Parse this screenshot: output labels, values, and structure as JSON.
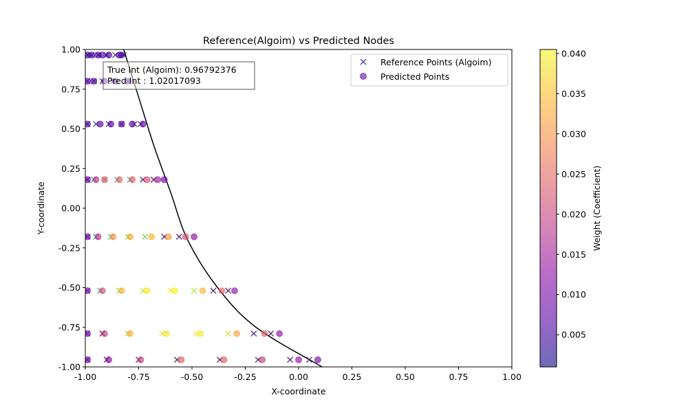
{
  "chart_data": {
    "type": "scatter",
    "title": "Reference(Algoim) vs Predicted Nodes",
    "xlabel": "X-coordinate",
    "ylabel": "Y-coordinate",
    "xlim": [
      -1.0,
      1.0
    ],
    "ylim": [
      -1.0,
      1.0
    ],
    "x_ticks": [
      "-1.00",
      "-0.75",
      "-0.50",
      "-0.25",
      "0.00",
      "0.25",
      "0.50",
      "0.75",
      "1.00"
    ],
    "y_ticks": [
      "-1.00",
      "-0.75",
      "-0.50",
      "-0.25",
      "0.00",
      "0.25",
      "0.50",
      "0.75",
      "1.00"
    ],
    "grid": false,
    "legend_position": "top-right",
    "legend": [
      {
        "label": "Reference Points (Algoim)",
        "marker": "x"
      },
      {
        "label": "Predicted Points",
        "marker": "o"
      }
    ],
    "annotation": {
      "line1": "True Int (Algoim): 0.96792376",
      "line2": "Pred Int : 1.02017093"
    },
    "colorbar": {
      "label": "Weight (Coefficient)",
      "range": [
        0.001,
        0.0405
      ],
      "ticks": [
        "0.005",
        "0.010",
        "0.015",
        "0.020",
        "0.025",
        "0.030",
        "0.035",
        "0.040"
      ],
      "colormap": "plasma"
    },
    "curve": {
      "points": [
        [
          -0.82,
          1.0
        ],
        [
          -0.75,
          0.7
        ],
        [
          -0.68,
          0.4
        ],
        [
          -0.6,
          0.1
        ],
        [
          -0.52,
          -0.2
        ],
        [
          -0.38,
          -0.5
        ],
        [
          -0.2,
          -0.75
        ],
        [
          0.11,
          -1.0
        ]
      ]
    },
    "series": [
      {
        "name": "Reference Points (Algoim)",
        "marker": "x",
        "points": [
          {
            "x": -0.99,
            "y": 0.965,
            "w": 0.006
          },
          {
            "x": -0.97,
            "y": 0.965,
            "w": 0.006
          },
          {
            "x": -0.94,
            "y": 0.965,
            "w": 0.006
          },
          {
            "x": -0.9,
            "y": 0.965,
            "w": 0.006
          },
          {
            "x": -0.86,
            "y": 0.965,
            "w": 0.006
          },
          {
            "x": -0.82,
            "y": 0.965,
            "w": 0.006
          },
          {
            "x": -0.99,
            "y": 0.8,
            "w": 0.007
          },
          {
            "x": -0.96,
            "y": 0.8,
            "w": 0.007
          },
          {
            "x": -0.92,
            "y": 0.8,
            "w": 0.007
          },
          {
            "x": -0.87,
            "y": 0.8,
            "w": 0.007
          },
          {
            "x": -0.8,
            "y": 0.8,
            "w": 0.007
          },
          {
            "x": -0.99,
            "y": 0.53,
            "w": 0.008
          },
          {
            "x": -0.95,
            "y": 0.53,
            "w": 0.008
          },
          {
            "x": -0.89,
            "y": 0.53,
            "w": 0.008
          },
          {
            "x": -0.83,
            "y": 0.53,
            "w": 0.008
          },
          {
            "x": -0.77,
            "y": 0.53,
            "w": 0.008
          },
          {
            "x": -0.74,
            "y": 0.53,
            "w": 0.008
          },
          {
            "x": -0.99,
            "y": 0.18,
            "w": 0.006
          },
          {
            "x": -0.96,
            "y": 0.18,
            "w": 0.018
          },
          {
            "x": -0.91,
            "y": 0.18,
            "w": 0.024
          },
          {
            "x": -0.85,
            "y": 0.18,
            "w": 0.025
          },
          {
            "x": -0.79,
            "y": 0.18,
            "w": 0.024
          },
          {
            "x": -0.73,
            "y": 0.18,
            "w": 0.003
          },
          {
            "x": -0.68,
            "y": 0.18,
            "w": 0.003
          },
          {
            "x": -0.99,
            "y": -0.18,
            "w": 0.006
          },
          {
            "x": -0.95,
            "y": -0.18,
            "w": 0.018
          },
          {
            "x": -0.88,
            "y": -0.18,
            "w": 0.028
          },
          {
            "x": -0.8,
            "y": -0.18,
            "w": 0.032
          },
          {
            "x": -0.72,
            "y": -0.18,
            "w": 0.032
          },
          {
            "x": -0.63,
            "y": -0.18,
            "w": 0.003
          },
          {
            "x": -0.56,
            "y": -0.18,
            "w": 0.003
          },
          {
            "x": -0.99,
            "y": -0.52,
            "w": 0.01
          },
          {
            "x": -0.93,
            "y": -0.52,
            "w": 0.022
          },
          {
            "x": -0.84,
            "y": -0.52,
            "w": 0.033
          },
          {
            "x": -0.73,
            "y": -0.52,
            "w": 0.037
          },
          {
            "x": -0.6,
            "y": -0.52,
            "w": 0.04
          },
          {
            "x": -0.49,
            "y": -0.52,
            "w": 0.036
          },
          {
            "x": -0.4,
            "y": -0.52,
            "w": 0.003
          },
          {
            "x": -0.33,
            "y": -0.52,
            "w": 0.003
          },
          {
            "x": -0.99,
            "y": -0.79,
            "w": 0.01
          },
          {
            "x": -0.92,
            "y": -0.79,
            "w": 0.003
          },
          {
            "x": -0.8,
            "y": -0.79,
            "w": 0.035
          },
          {
            "x": -0.64,
            "y": -0.79,
            "w": 0.038
          },
          {
            "x": -0.48,
            "y": -0.79,
            "w": 0.04
          },
          {
            "x": -0.33,
            "y": -0.79,
            "w": 0.038
          },
          {
            "x": -0.21,
            "y": -0.79,
            "w": 0.003
          },
          {
            "x": -0.13,
            "y": -0.79,
            "w": 0.003
          },
          {
            "x": -0.99,
            "y": -0.955,
            "w": 0.003
          },
          {
            "x": -0.9,
            "y": -0.955,
            "w": 0.003
          },
          {
            "x": -0.75,
            "y": -0.955,
            "w": 0.003
          },
          {
            "x": -0.57,
            "y": -0.955,
            "w": 0.003
          },
          {
            "x": -0.37,
            "y": -0.955,
            "w": 0.003
          },
          {
            "x": -0.19,
            "y": -0.955,
            "w": 0.003
          },
          {
            "x": -0.04,
            "y": -0.955,
            "w": 0.003
          },
          {
            "x": 0.05,
            "y": -0.955,
            "w": 0.003
          }
        ]
      },
      {
        "name": "Predicted Points",
        "marker": "o",
        "points": [
          {
            "x": -0.99,
            "y": 0.965,
            "w": 0.006
          },
          {
            "x": -0.97,
            "y": 0.965,
            "w": 0.006
          },
          {
            "x": -0.94,
            "y": 0.965,
            "w": 0.006
          },
          {
            "x": -0.92,
            "y": 0.965,
            "w": 0.006
          },
          {
            "x": -0.89,
            "y": 0.965,
            "w": 0.006
          },
          {
            "x": -0.84,
            "y": 0.965,
            "w": 0.006
          },
          {
            "x": -0.83,
            "y": 0.965,
            "w": 0.006
          },
          {
            "x": -0.99,
            "y": 0.8,
            "w": 0.007
          },
          {
            "x": -0.96,
            "y": 0.8,
            "w": 0.007
          },
          {
            "x": -0.91,
            "y": 0.8,
            "w": 0.007
          },
          {
            "x": -0.86,
            "y": 0.8,
            "w": 0.007
          },
          {
            "x": -0.8,
            "y": 0.8,
            "w": 0.007
          },
          {
            "x": -0.99,
            "y": 0.53,
            "w": 0.008
          },
          {
            "x": -0.93,
            "y": 0.53,
            "w": 0.008
          },
          {
            "x": -0.88,
            "y": 0.53,
            "w": 0.008
          },
          {
            "x": -0.83,
            "y": 0.53,
            "w": 0.008
          },
          {
            "x": -0.78,
            "y": 0.53,
            "w": 0.008
          },
          {
            "x": -0.73,
            "y": 0.53,
            "w": 0.008
          },
          {
            "x": -0.99,
            "y": 0.18,
            "w": 0.009
          },
          {
            "x": -0.95,
            "y": 0.18,
            "w": 0.018
          },
          {
            "x": -0.91,
            "y": 0.18,
            "w": 0.024
          },
          {
            "x": -0.84,
            "y": 0.18,
            "w": 0.025
          },
          {
            "x": -0.78,
            "y": 0.18,
            "w": 0.024
          },
          {
            "x": -0.71,
            "y": 0.18,
            "w": 0.022
          },
          {
            "x": -0.66,
            "y": 0.18,
            "w": 0.015
          },
          {
            "x": -0.63,
            "y": 0.18,
            "w": 0.01
          },
          {
            "x": -0.99,
            "y": -0.18,
            "w": 0.01
          },
          {
            "x": -0.94,
            "y": -0.18,
            "w": 0.018
          },
          {
            "x": -0.87,
            "y": -0.18,
            "w": 0.03
          },
          {
            "x": -0.79,
            "y": -0.18,
            "w": 0.033
          },
          {
            "x": -0.69,
            "y": -0.18,
            "w": 0.034
          },
          {
            "x": -0.61,
            "y": -0.18,
            "w": 0.031
          },
          {
            "x": -0.53,
            "y": -0.18,
            "w": 0.022
          },
          {
            "x": -0.49,
            "y": -0.18,
            "w": 0.013
          },
          {
            "x": -0.99,
            "y": -0.52,
            "w": 0.011
          },
          {
            "x": -0.92,
            "y": -0.52,
            "w": 0.022
          },
          {
            "x": -0.83,
            "y": -0.52,
            "w": 0.034
          },
          {
            "x": -0.71,
            "y": -0.52,
            "w": 0.039
          },
          {
            "x": -0.58,
            "y": -0.52,
            "w": 0.04
          },
          {
            "x": -0.45,
            "y": -0.52,
            "w": 0.034
          },
          {
            "x": -0.36,
            "y": -0.52,
            "w": 0.025
          },
          {
            "x": -0.3,
            "y": -0.52,
            "w": 0.013
          },
          {
            "x": -0.99,
            "y": -0.79,
            "w": 0.011
          },
          {
            "x": -0.91,
            "y": -0.79,
            "w": 0.02
          },
          {
            "x": -0.79,
            "y": -0.79,
            "w": 0.033
          },
          {
            "x": -0.62,
            "y": -0.79,
            "w": 0.038
          },
          {
            "x": -0.46,
            "y": -0.79,
            "w": 0.039
          },
          {
            "x": -0.29,
            "y": -0.79,
            "w": 0.032
          },
          {
            "x": -0.16,
            "y": -0.79,
            "w": 0.024
          },
          {
            "x": -0.09,
            "y": -0.79,
            "w": 0.013
          },
          {
            "x": -0.99,
            "y": -0.955,
            "w": 0.01
          },
          {
            "x": -0.89,
            "y": -0.955,
            "w": 0.013
          },
          {
            "x": -0.74,
            "y": -0.955,
            "w": 0.02
          },
          {
            "x": -0.55,
            "y": -0.955,
            "w": 0.024
          },
          {
            "x": -0.35,
            "y": -0.955,
            "w": 0.024
          },
          {
            "x": -0.17,
            "y": -0.955,
            "w": 0.02
          },
          {
            "x": 0.0,
            "y": -0.955,
            "w": 0.013
          },
          {
            "x": 0.09,
            "y": -0.955,
            "w": 0.01
          }
        ]
      }
    ]
  }
}
